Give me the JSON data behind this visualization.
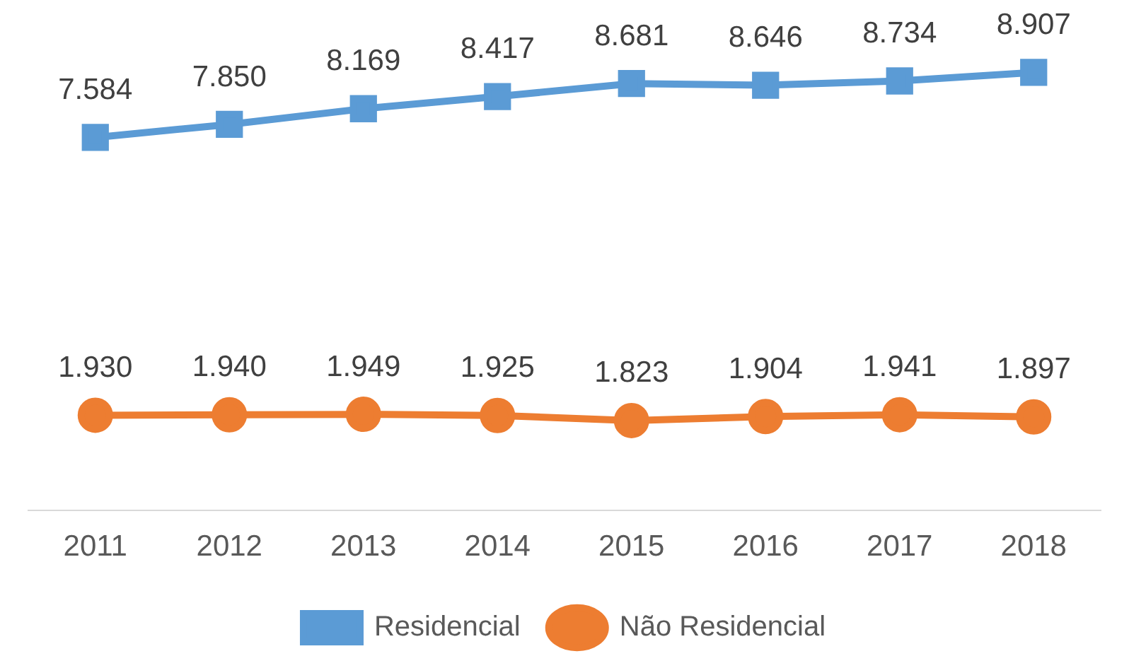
{
  "chart_data": {
    "type": "line",
    "categories": [
      "2011",
      "2012",
      "2013",
      "2014",
      "2015",
      "2016",
      "2017",
      "2018"
    ],
    "tick_labels": "x",
    "grid": false,
    "legend": "bottom",
    "line_style": "solid",
    "series": [
      {
        "name": "Residencial",
        "color": "#5b9bd5",
        "marker": "square",
        "values": [
          7584,
          7850,
          8169,
          8417,
          8681,
          8646,
          8734,
          8907
        ],
        "value_labels": [
          "7.584",
          "7.850",
          "8.169",
          "8.417",
          "8.681",
          "8.646",
          "8.734",
          "8.907"
        ]
      },
      {
        "name": "Não Residencial",
        "color": "#ed7d31",
        "marker": "circle",
        "values": [
          1930,
          1940,
          1949,
          1925,
          1823,
          1904,
          1941,
          1897
        ],
        "value_labels": [
          "1.930",
          "1.940",
          "1.949",
          "1.925",
          "1.823",
          "1.904",
          "1.941",
          "1.897"
        ]
      }
    ]
  }
}
